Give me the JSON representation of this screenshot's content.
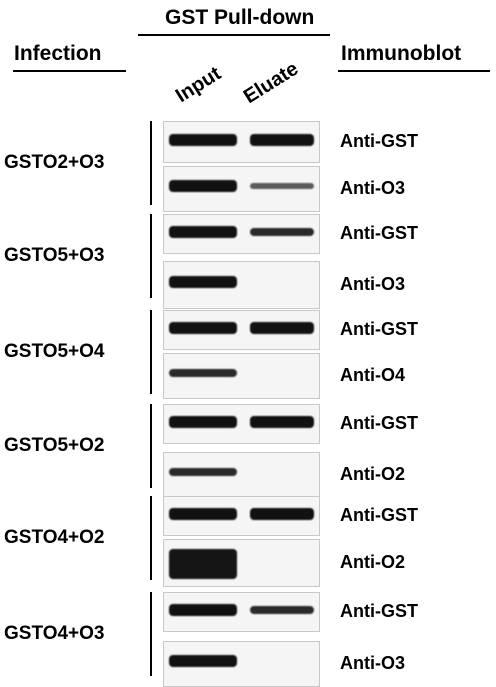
{
  "headers": {
    "infection": "Infection",
    "pulldown": "GST Pull-down",
    "immunoblot": "Immunoblot",
    "lane_input": "Input",
    "lane_eluate": "Eluate"
  },
  "groups": [
    {
      "condition": "GSTO2+O3",
      "blots": [
        {
          "antibody": "Anti-GST",
          "input_band": "strong",
          "eluate_band": "strong"
        },
        {
          "antibody": "Anti-O3",
          "input_band": "strong",
          "eluate_band": "weak"
        }
      ]
    },
    {
      "condition": "GSTO5+O3",
      "blots": [
        {
          "antibody": "Anti-GST",
          "input_band": "strong",
          "eluate_band": "medium"
        },
        {
          "antibody": "Anti-O3",
          "input_band": "strong",
          "eluate_band": "none"
        }
      ]
    },
    {
      "condition": "GSTO5+O4",
      "blots": [
        {
          "antibody": "Anti-GST",
          "input_band": "strong",
          "eluate_band": "strong"
        },
        {
          "antibody": "Anti-O4",
          "input_band": "medium",
          "eluate_band": "none"
        }
      ]
    },
    {
      "condition": "GSTO5+O2",
      "blots": [
        {
          "antibody": "Anti-GST",
          "input_band": "strong",
          "eluate_band": "strong"
        },
        {
          "antibody": "Anti-O2",
          "input_band": "medium",
          "eluate_band": "none"
        }
      ]
    },
    {
      "condition": "GSTO4+O2",
      "blots": [
        {
          "antibody": "Anti-GST",
          "input_band": "strong",
          "eluate_band": "strong"
        },
        {
          "antibody": "Anti-O2",
          "input_band": "heavy",
          "eluate_band": "none"
        }
      ]
    },
    {
      "condition": "GSTO4+O3",
      "blots": [
        {
          "antibody": "Anti-GST",
          "input_band": "strong",
          "eluate_band": "medium"
        },
        {
          "antibody": "Anti-O3",
          "input_band": "strong",
          "eluate_band": "none"
        }
      ]
    }
  ]
}
